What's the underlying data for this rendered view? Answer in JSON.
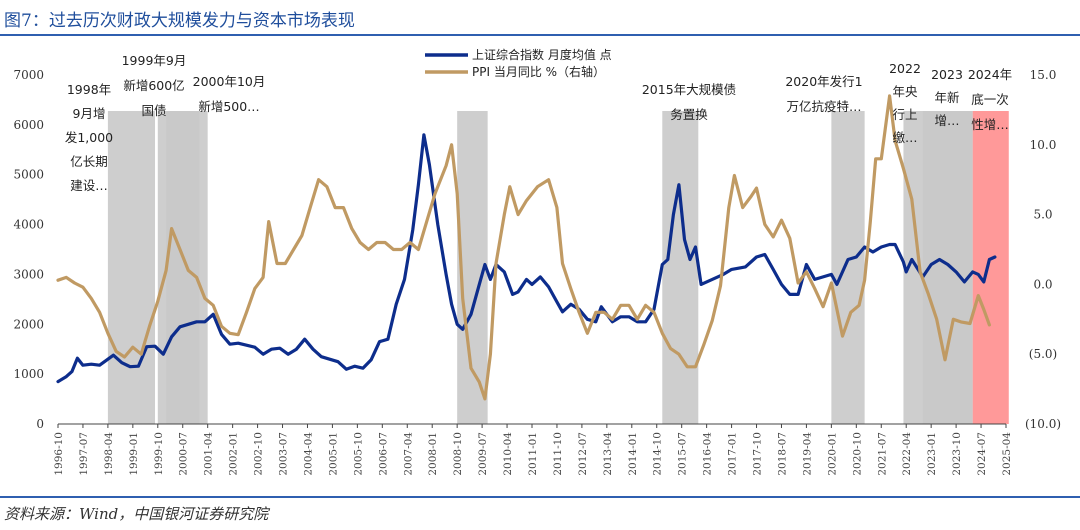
{
  "figure": {
    "title": "图7：过去历次财政大规模发力与资本市场表现",
    "source": "资料来源：Wind，中国银河证券研究院"
  },
  "chart_data": {
    "type": "line",
    "legend": {
      "placement": "top-center",
      "entries": [
        {
          "name": "上证综合指数 月度均值 点",
          "color": "#0d2d8c"
        },
        {
          "name": "PPI 当月同比 %（右轴）",
          "color": "#c09a63"
        }
      ]
    },
    "x_ticks": [
      "1996-10",
      "1997-07",
      "1998-04",
      "1999-01",
      "1999-10",
      "2000-07",
      "2001-04",
      "2002-01",
      "2002-10",
      "2003-07",
      "2004-04",
      "2005-01",
      "2005-10",
      "2006-07",
      "2007-04",
      "2008-01",
      "2008-10",
      "2009-07",
      "2010-04",
      "2011-01",
      "2011-10",
      "2012-07",
      "2013-04",
      "2014-01",
      "2014-10",
      "2015-07",
      "2016-04",
      "2017-01",
      "2017-10",
      "2018-07",
      "2019-04",
      "2020-01",
      "2020-10",
      "2021-07",
      "2022-04",
      "2023-01",
      "2023-10",
      "2024-07",
      "2025-04"
    ],
    "x_range": [
      "1996-10",
      "2025-04"
    ],
    "y_left": {
      "ticks": [
        "0",
        "1000",
        "2000",
        "3000",
        "4000",
        "5000",
        "6000",
        "7000"
      ],
      "range": [
        0,
        7000
      ]
    },
    "y_right": {
      "ticks": [
        "(10.0)",
        "(5.0)",
        "0.0",
        "5.0",
        "10.0",
        "15.0"
      ],
      "range": [
        -10,
        15
      ],
      "negative_color": "#c0392b"
    },
    "shaded_periods": [
      {
        "start": "1998-04",
        "end": "1999-09",
        "color": "#c9c9c9",
        "label_lines": [
          "1998年",
          "9月增",
          "发1,000",
          "亿长期",
          "建设…"
        ]
      },
      {
        "start": "1999-10",
        "end": "2001-01",
        "color": "#c9c9c9",
        "label_lines": [
          "1999年9月",
          "新增600亿",
          "国债"
        ]
      },
      {
        "start": "2000-01",
        "end": "2001-04",
        "color": "#c9c9c9",
        "label_lines": [
          "2000年10月",
          "新增500…"
        ]
      },
      {
        "start": "2008-10",
        "end": "2009-09",
        "color": "#c9c9c9",
        "label_lines": []
      },
      {
        "start": "2014-12",
        "end": "2016-01",
        "color": "#c9c9c9",
        "label_lines": [
          "2015年大规模债",
          "务置换"
        ]
      },
      {
        "start": "2020-01",
        "end": "2021-01",
        "color": "#c9c9c9",
        "label_lines": [
          "2020年发行1",
          "万亿抗疫特…"
        ]
      },
      {
        "start": "2022-03",
        "end": "2024-04",
        "color": "#c9c9c9",
        "label_lines": [
          "2022",
          "年央",
          "行上",
          "缴…"
        ]
      },
      {
        "start": "2022-10",
        "end": "2024-04",
        "color": "#c9c9c9",
        "label_lines": [
          "2023",
          "年新",
          "增…"
        ]
      },
      {
        "start": "2024-04",
        "end": "2025-05",
        "color": "#ff9999",
        "label_lines": [
          "2024年",
          "底一次",
          "性增…"
        ]
      }
    ],
    "series": [
      {
        "name": "上证综合指数 月度均值 点",
        "axis": "left",
        "color": "#0d2d8c",
        "points": [
          [
            "1996-10",
            850
          ],
          [
            "1997-01",
            950
          ],
          [
            "1997-03",
            1050
          ],
          [
            "1997-05",
            1320
          ],
          [
            "1997-07",
            1180
          ],
          [
            "1997-10",
            1200
          ],
          [
            "1998-01",
            1180
          ],
          [
            "1998-04",
            1300
          ],
          [
            "1998-06",
            1380
          ],
          [
            "1998-09",
            1230
          ],
          [
            "1998-12",
            1150
          ],
          [
            "1999-03",
            1160
          ],
          [
            "1999-06",
            1550
          ],
          [
            "1999-09",
            1560
          ],
          [
            "1999-12",
            1400
          ],
          [
            "2000-03",
            1750
          ],
          [
            "2000-06",
            1950
          ],
          [
            "2000-09",
            2000
          ],
          [
            "2000-12",
            2050
          ],
          [
            "2001-03",
            2050
          ],
          [
            "2001-06",
            2200
          ],
          [
            "2001-09",
            1800
          ],
          [
            "2001-12",
            1600
          ],
          [
            "2002-03",
            1620
          ],
          [
            "2002-06",
            1580
          ],
          [
            "2002-09",
            1540
          ],
          [
            "2002-12",
            1400
          ],
          [
            "2003-03",
            1500
          ],
          [
            "2003-06",
            1520
          ],
          [
            "2003-09",
            1400
          ],
          [
            "2003-12",
            1500
          ],
          [
            "2004-03",
            1700
          ],
          [
            "2004-06",
            1500
          ],
          [
            "2004-09",
            1350
          ],
          [
            "2004-12",
            1300
          ],
          [
            "2005-03",
            1250
          ],
          [
            "2005-06",
            1100
          ],
          [
            "2005-09",
            1160
          ],
          [
            "2005-12",
            1120
          ],
          [
            "2006-03",
            1290
          ],
          [
            "2006-06",
            1650
          ],
          [
            "2006-09",
            1700
          ],
          [
            "2006-12",
            2400
          ],
          [
            "2007-03",
            2900
          ],
          [
            "2007-06",
            3900
          ],
          [
            "2007-08",
            4800
          ],
          [
            "2007-10",
            5800
          ],
          [
            "2007-12",
            5200
          ],
          [
            "2008-03",
            4000
          ],
          [
            "2008-06",
            3000
          ],
          [
            "2008-08",
            2400
          ],
          [
            "2008-10",
            2000
          ],
          [
            "2008-12",
            1900
          ],
          [
            "2009-03",
            2200
          ],
          [
            "2009-06",
            2800
          ],
          [
            "2009-08",
            3200
          ],
          [
            "2009-10",
            2900
          ],
          [
            "2009-12",
            3200
          ],
          [
            "2010-03",
            3050
          ],
          [
            "2010-06",
            2600
          ],
          [
            "2010-08",
            2650
          ],
          [
            "2010-11",
            2900
          ],
          [
            "2011-01",
            2800
          ],
          [
            "2011-04",
            2950
          ],
          [
            "2011-07",
            2750
          ],
          [
            "2011-10",
            2450
          ],
          [
            "2011-12",
            2250
          ],
          [
            "2012-03",
            2400
          ],
          [
            "2012-06",
            2300
          ],
          [
            "2012-09",
            2100
          ],
          [
            "2012-12",
            2050
          ],
          [
            "2013-02",
            2350
          ],
          [
            "2013-06",
            2050
          ],
          [
            "2013-09",
            2150
          ],
          [
            "2013-12",
            2150
          ],
          [
            "2014-03",
            2050
          ],
          [
            "2014-06",
            2050
          ],
          [
            "2014-09",
            2300
          ],
          [
            "2014-12",
            3200
          ],
          [
            "2015-02",
            3300
          ],
          [
            "2015-04",
            4200
          ],
          [
            "2015-06",
            4800
          ],
          [
            "2015-08",
            3700
          ],
          [
            "2015-10",
            3300
          ],
          [
            "2015-12",
            3550
          ],
          [
            "2016-02",
            2800
          ],
          [
            "2016-06",
            2900
          ],
          [
            "2016-10",
            3000
          ],
          [
            "2017-01",
            3100
          ],
          [
            "2017-06",
            3150
          ],
          [
            "2017-10",
            3350
          ],
          [
            "2018-01",
            3400
          ],
          [
            "2018-04",
            3100
          ],
          [
            "2018-07",
            2800
          ],
          [
            "2018-10",
            2600
          ],
          [
            "2019-01",
            2600
          ],
          [
            "2019-04",
            3200
          ],
          [
            "2019-07",
            2900
          ],
          [
            "2019-10",
            2950
          ],
          [
            "2020-01",
            3000
          ],
          [
            "2020-03",
            2800
          ],
          [
            "2020-07",
            3300
          ],
          [
            "2020-10",
            3350
          ],
          [
            "2021-01",
            3550
          ],
          [
            "2021-04",
            3450
          ],
          [
            "2021-07",
            3550
          ],
          [
            "2021-10",
            3600
          ],
          [
            "2021-12",
            3600
          ],
          [
            "2022-03",
            3250
          ],
          [
            "2022-04",
            3050
          ],
          [
            "2022-06",
            3300
          ],
          [
            "2022-10",
            2950
          ],
          [
            "2023-01",
            3200
          ],
          [
            "2023-04",
            3300
          ],
          [
            "2023-07",
            3200
          ],
          [
            "2023-10",
            3050
          ],
          [
            "2024-01",
            2850
          ],
          [
            "2024-04",
            3050
          ],
          [
            "2024-06",
            3000
          ],
          [
            "2024-08",
            2850
          ],
          [
            "2024-10",
            3300
          ],
          [
            "2024-12",
            3350
          ]
        ]
      },
      {
        "name": "PPI 当月同比 %（右轴）",
        "axis": "right",
        "color": "#c09a63",
        "points": [
          [
            "1996-10",
            0.3
          ],
          [
            "1997-01",
            0.5
          ],
          [
            "1997-04",
            0.1
          ],
          [
            "1997-07",
            -0.2
          ],
          [
            "1997-10",
            -1.0
          ],
          [
            "1998-01",
            -2.0
          ],
          [
            "1998-04",
            -3.5
          ],
          [
            "1998-07",
            -4.8
          ],
          [
            "1998-10",
            -5.2
          ],
          [
            "1999-01",
            -4.5
          ],
          [
            "1999-04",
            -5.0
          ],
          [
            "1999-07",
            -3.0
          ],
          [
            "1999-10",
            -1.2
          ],
          [
            "2000-01",
            1.0
          ],
          [
            "2000-03",
            4.0
          ],
          [
            "2000-06",
            2.5
          ],
          [
            "2000-09",
            1.0
          ],
          [
            "2000-12",
            0.5
          ],
          [
            "2001-03",
            -1.0
          ],
          [
            "2001-06",
            -1.5
          ],
          [
            "2001-09",
            -3.0
          ],
          [
            "2001-12",
            -3.5
          ],
          [
            "2002-03",
            -3.6
          ],
          [
            "2002-06",
            -2.0
          ],
          [
            "2002-09",
            -0.3
          ],
          [
            "2002-12",
            0.5
          ],
          [
            "2003-02",
            4.5
          ],
          [
            "2003-05",
            1.5
          ],
          [
            "2003-08",
            1.5
          ],
          [
            "2003-11",
            2.5
          ],
          [
            "2004-02",
            3.5
          ],
          [
            "2004-05",
            5.5
          ],
          [
            "2004-08",
            7.5
          ],
          [
            "2004-11",
            7.0
          ],
          [
            "2005-02",
            5.5
          ],
          [
            "2005-05",
            5.5
          ],
          [
            "2005-08",
            4.0
          ],
          [
            "2005-11",
            3.0
          ],
          [
            "2006-02",
            2.5
          ],
          [
            "2006-05",
            3.0
          ],
          [
            "2006-08",
            3.0
          ],
          [
            "2006-11",
            2.5
          ],
          [
            "2007-02",
            2.5
          ],
          [
            "2007-05",
            3.0
          ],
          [
            "2007-08",
            2.5
          ],
          [
            "2007-11",
            4.5
          ],
          [
            "2008-02",
            6.5
          ],
          [
            "2008-06",
            8.5
          ],
          [
            "2008-08",
            10.0
          ],
          [
            "2008-10",
            6.5
          ],
          [
            "2008-12",
            -1.0
          ],
          [
            "2009-03",
            -6.0
          ],
          [
            "2009-06",
            -7.0
          ],
          [
            "2009-08",
            -8.2
          ],
          [
            "2009-10",
            -5.0
          ],
          [
            "2009-12",
            1.5
          ],
          [
            "2010-03",
            5.0
          ],
          [
            "2010-05",
            7.0
          ],
          [
            "2010-08",
            5.0
          ],
          [
            "2010-11",
            6.0
          ],
          [
            "2011-03",
            7.0
          ],
          [
            "2011-07",
            7.5
          ],
          [
            "2011-10",
            5.5
          ],
          [
            "2011-12",
            1.5
          ],
          [
            "2012-03",
            -0.3
          ],
          [
            "2012-06",
            -2.0
          ],
          [
            "2012-09",
            -3.5
          ],
          [
            "2012-12",
            -2.0
          ],
          [
            "2013-03",
            -2.0
          ],
          [
            "2013-06",
            -2.5
          ],
          [
            "2013-09",
            -1.5
          ],
          [
            "2013-12",
            -1.5
          ],
          [
            "2014-03",
            -2.5
          ],
          [
            "2014-06",
            -1.5
          ],
          [
            "2014-09",
            -2.0
          ],
          [
            "2014-12",
            -3.5
          ],
          [
            "2015-03",
            -4.6
          ],
          [
            "2015-06",
            -5.0
          ],
          [
            "2015-09",
            -5.9
          ],
          [
            "2015-12",
            -5.9
          ],
          [
            "2016-03",
            -4.3
          ],
          [
            "2016-06",
            -2.6
          ],
          [
            "2016-09",
            -0.1
          ],
          [
            "2016-12",
            5.5
          ],
          [
            "2017-02",
            7.8
          ],
          [
            "2017-05",
            5.5
          ],
          [
            "2017-08",
            6.3
          ],
          [
            "2017-10",
            6.9
          ],
          [
            "2018-01",
            4.3
          ],
          [
            "2018-04",
            3.4
          ],
          [
            "2018-07",
            4.6
          ],
          [
            "2018-10",
            3.3
          ],
          [
            "2019-01",
            0.1
          ],
          [
            "2019-04",
            0.9
          ],
          [
            "2019-07",
            -0.3
          ],
          [
            "2019-10",
            -1.6
          ],
          [
            "2020-01",
            0.1
          ],
          [
            "2020-05",
            -3.7
          ],
          [
            "2020-08",
            -2.0
          ],
          [
            "2020-11",
            -1.5
          ],
          [
            "2021-01",
            0.3
          ],
          [
            "2021-03",
            4.4
          ],
          [
            "2021-05",
            9.0
          ],
          [
            "2021-07",
            9.0
          ],
          [
            "2021-10",
            13.5
          ],
          [
            "2021-12",
            10.3
          ],
          [
            "2022-03",
            8.3
          ],
          [
            "2022-06",
            6.1
          ],
          [
            "2022-09",
            0.9
          ],
          [
            "2022-12",
            -0.7
          ],
          [
            "2023-03",
            -2.5
          ],
          [
            "2023-06",
            -5.4
          ],
          [
            "2023-09",
            -2.5
          ],
          [
            "2023-12",
            -2.7
          ],
          [
            "2024-03",
            -2.8
          ],
          [
            "2024-06",
            -0.8
          ],
          [
            "2024-08",
            -1.8
          ],
          [
            "2024-10",
            -2.9
          ]
        ]
      }
    ]
  }
}
